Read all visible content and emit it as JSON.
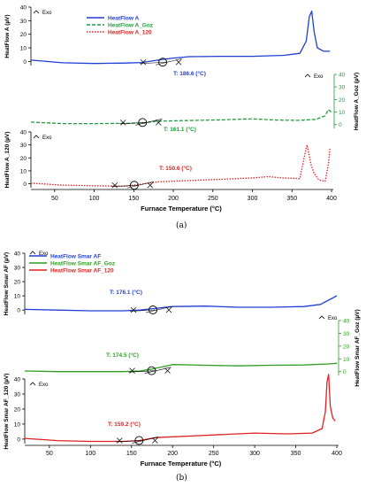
{
  "chart_data": [
    {
      "type": "line",
      "panel_label": "(a)",
      "xlabel": "Furnace Temperature (°C)",
      "xlim": [
        20,
        400
      ],
      "xticks": [
        50,
        100,
        150,
        200,
        250,
        300,
        350,
        400
      ],
      "exo_label": "Exo",
      "legend_position": "top",
      "legend": [
        "HeatFlow A",
        "HeatFlow A_Goz",
        "HeatFlow A_120"
      ],
      "series": [
        {
          "name": "HeatFlow A",
          "color": "#1f3fd6",
          "dash": "solid",
          "ylabel": "HeatFlow A (µV)",
          "axis_side": "left",
          "ylim": [
            -3,
            40
          ],
          "yticks": [
            0,
            10,
            20,
            30,
            40
          ],
          "annotation": "T: 186.6 (°C)",
          "onset_x": 186.6,
          "x": [
            20,
            60,
            100,
            140,
            160,
            186,
            200,
            220,
            260,
            300,
            340,
            360,
            368,
            372,
            375,
            378,
            382,
            390,
            398
          ],
          "y": [
            1,
            -1,
            -1.5,
            -1.2,
            -0.8,
            1.5,
            2.5,
            3.5,
            3.8,
            3.8,
            4.5,
            6,
            15,
            33,
            37,
            22,
            10,
            7.5,
            7.5
          ]
        },
        {
          "name": "HeatFlow A_Goz",
          "color": "#1e9e3a",
          "dash": "dashed",
          "ylabel": "HeatFlow A_Goz (µV)",
          "axis_side": "right",
          "ylim": [
            -3,
            40
          ],
          "yticks": [
            0,
            10,
            20,
            30,
            40
          ],
          "annotation": "T: 161.1 (°C)",
          "onset_x": 161.1,
          "x": [
            20,
            60,
            100,
            140,
            160,
            180,
            220,
            260,
            300,
            330,
            360,
            380,
            392,
            396,
            400
          ],
          "y": [
            2,
            0.8,
            0.8,
            1.0,
            1.2,
            2.8,
            3.3,
            3.8,
            4.6,
            3.6,
            3.4,
            4.2,
            7,
            12,
            10
          ]
        },
        {
          "name": "HeatFlow A_120",
          "color": "#e02020",
          "dash": "dotted",
          "ylabel": "HeatFlow A_120 (µV)",
          "axis_side": "left",
          "ylim": [
            -3,
            40
          ],
          "yticks": [
            0,
            10,
            20,
            30,
            40
          ],
          "annotation": "T: 150.6 (°C)",
          "onset_x": 150.6,
          "x": [
            20,
            60,
            100,
            140,
            150,
            180,
            220,
            260,
            300,
            320,
            340,
            360,
            366,
            369,
            371,
            374,
            378,
            384,
            392,
            396,
            398
          ],
          "y": [
            0.5,
            -1,
            -1.5,
            -1.8,
            -1,
            1.5,
            2.5,
            3.5,
            4.5,
            5.5,
            4.5,
            4,
            22,
            30,
            24,
            15,
            8,
            3,
            2,
            15,
            27
          ]
        }
      ]
    },
    {
      "type": "line",
      "panel_label": "(b)",
      "xlabel": "Furnace Temperature (°C)",
      "xlim": [
        20,
        400
      ],
      "xticks": [
        50,
        100,
        150,
        200,
        250,
        300,
        350,
        400
      ],
      "exo_label": "Exo",
      "legend_position": "top-left",
      "legend": [
        "HeatFlow Smar AF",
        "HeatFlow Smar AF_Goz",
        "HeatFlow Smar AF_120"
      ],
      "series": [
        {
          "name": "HeatFlow Smar AF",
          "color": "#1f3fd6",
          "dash": "solid",
          "ylabel": "HeatFlow Smar AF (µV)",
          "axis_side": "left",
          "ylim": [
            -3,
            40
          ],
          "yticks": [
            0,
            10,
            20,
            30,
            40
          ],
          "annotation": "T: 176.1 (°C)",
          "onset_x": 176.1,
          "x": [
            20,
            60,
            100,
            140,
            160,
            176,
            200,
            240,
            280,
            320,
            360,
            380,
            390,
            400
          ],
          "y": [
            0.5,
            0,
            -0.5,
            -0.5,
            0,
            1,
            2.5,
            2.8,
            2,
            2,
            2.5,
            4,
            7,
            10
          ]
        },
        {
          "name": "HeatFlow Smar AF_Goz",
          "color": "#2e9e22",
          "dash": "solid",
          "ylabel": "HeatFlow Smar AF_Goz (µV)",
          "axis_side": "right",
          "ylim": [
            -3,
            40
          ],
          "yticks": [
            0,
            10,
            20,
            30,
            40
          ],
          "annotation": "T: 174.5 (°C)",
          "onset_x": 174.5,
          "x": [
            20,
            60,
            100,
            140,
            160,
            175,
            190,
            200,
            240,
            280,
            320,
            360,
            390,
            400
          ],
          "y": [
            0.5,
            0,
            0,
            0,
            0.5,
            2,
            4,
            5.5,
            5,
            4.5,
            5,
            5.2,
            6,
            6.5
          ]
        },
        {
          "name": "HeatFlow Smar AF_120",
          "color": "#e02020",
          "dash": "solid",
          "ylabel": "HeatFlow Smar AF_120 (µV)",
          "axis_side": "left",
          "ylim": [
            -3,
            40
          ],
          "yticks": [
            0,
            10,
            20,
            30,
            40
          ],
          "annotation": "T: 159.2 (°C)",
          "onset_x": 159.2,
          "x": [
            20,
            60,
            100,
            140,
            159,
            180,
            220,
            260,
            300,
            340,
            370,
            382,
            386,
            388,
            390,
            392,
            395,
            398
          ],
          "y": [
            0.5,
            -1,
            -1.5,
            -1.5,
            -1,
            1,
            2,
            3,
            4,
            3.5,
            4,
            7,
            18,
            38,
            43,
            22,
            14,
            12
          ]
        }
      ]
    }
  ]
}
